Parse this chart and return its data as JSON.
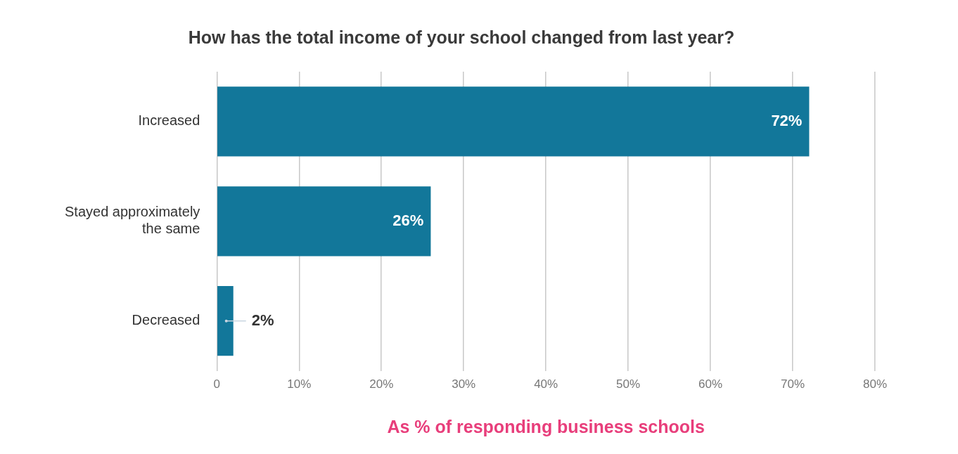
{
  "chart_data": {
    "type": "bar",
    "orientation": "horizontal",
    "title": "How has the total income of your school changed from last year?",
    "xlabel": "As % of responding business schools",
    "categories": [
      "Increased",
      "Stayed approximately the same",
      "Decreased"
    ],
    "values": [
      72,
      26,
      2
    ],
    "color": "#12779a",
    "value_labels": [
      "72%",
      "26%",
      "2%"
    ],
    "xlim": [
      0,
      80
    ],
    "xticks": [
      0,
      {
        "value": 10,
        "label": "10%"
      },
      {
        "value": 20,
        "label": "20%"
      },
      {
        "value": 30,
        "label": "30%"
      },
      {
        "value": 40,
        "label": "40%"
      },
      {
        "value": 50,
        "label": "50%"
      },
      {
        "value": 60,
        "label": "60%"
      },
      {
        "value": 70,
        "label": "70%"
      },
      {
        "value": 80,
        "label": "80%"
      }
    ],
    "grid": "x",
    "legend": false
  }
}
